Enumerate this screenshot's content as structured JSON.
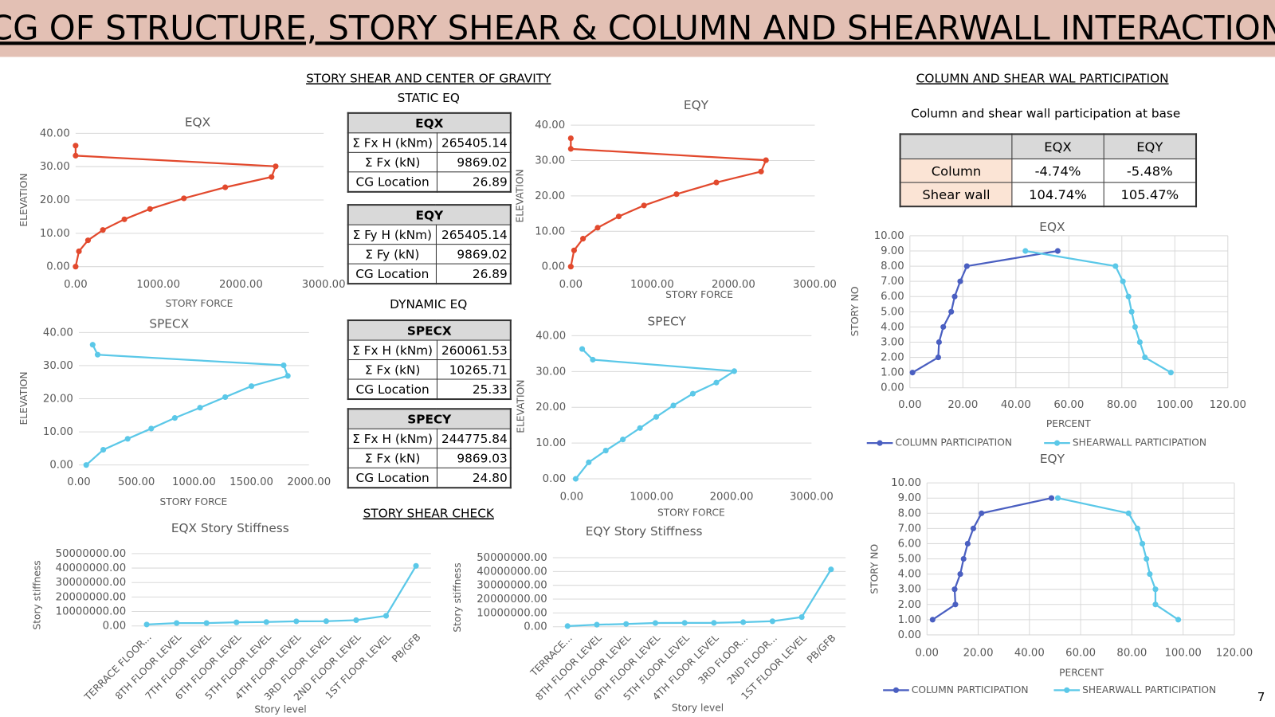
{
  "header": {
    "title": "CG OF STRUCTURE, STORY SHEAR & COLUMN AND SHEARWALL INTERACTION"
  },
  "headings": {
    "story_shear_cg": "STORY SHEAR AND CENTER OF GRAVITY",
    "static_eq": "STATIC EQ",
    "dynamic_eq": "DYNAMIC EQ",
    "story_shear_check": "STORY SHEAR CHECK",
    "participation": "COLUMN AND SHEAR WAL PARTICIPATION",
    "participation_sub": "Column and shear wall participation at base"
  },
  "page_number": 7,
  "tables": [
    {
      "title": "EQX",
      "rows": [
        [
          "Σ Fx H (kNm)",
          "265405.14"
        ],
        [
          "Σ Fx (kN)",
          "9869.02"
        ],
        [
          "CG Location",
          "26.89"
        ]
      ]
    },
    {
      "title": "EQY",
      "rows": [
        [
          "Σ Fy H (kNm)",
          "265405.14"
        ],
        [
          "Σ Fy (kN)",
          "9869.02"
        ],
        [
          "CG Location",
          "26.89"
        ]
      ]
    },
    {
      "title": "SPECX",
      "rows": [
        [
          "Σ Fx H (kNm)",
          "260061.53"
        ],
        [
          "Σ Fx (kN)",
          "10265.71"
        ],
        [
          "CG Location",
          "25.33"
        ]
      ]
    },
    {
      "title": "SPECY",
      "rows": [
        [
          "Σ Fx H (kNm)",
          "244775.84"
        ],
        [
          "Σ Fx (kN)",
          "9869.03"
        ],
        [
          "CG Location",
          "24.80"
        ]
      ]
    }
  ],
  "participation_table": {
    "columns": [
      "EQX",
      "EQY"
    ],
    "rows": [
      {
        "label": "Column",
        "values": [
          "-4.74%",
          "-5.48%"
        ]
      },
      {
        "label": "Shear wall",
        "values": [
          "104.74%",
          "105.47%"
        ]
      }
    ]
  },
  "chart_data": [
    {
      "type": "line",
      "title": "EQX",
      "x_label": "STORY FORCE",
      "y_label": "ELEVATION",
      "grid": "y",
      "series": [
        {
          "color": "#e2492d",
          "x": [
            0,
            0,
            2420,
            2370,
            1810,
            1310,
            900,
            590,
            330,
            150,
            40,
            0
          ],
          "values": [
            36.3,
            33.3,
            30.1,
            26.9,
            23.8,
            20.5,
            17.3,
            14.2,
            11.0,
            7.9,
            4.6,
            0
          ]
        }
      ],
      "xlim": [
        0,
        3000
      ],
      "xticks": [
        {
          "value": 0,
          "label": "0.00"
        },
        {
          "value": 1000,
          "label": "1000.00"
        },
        {
          "value": 2000,
          "label": "2000.00"
        },
        {
          "value": 3000,
          "label": "3000.00"
        }
      ],
      "ylim": [
        0,
        40
      ],
      "yticks": [
        {
          "value": 0,
          "label": "0.00"
        },
        {
          "value": 10,
          "label": "10.00"
        },
        {
          "value": 20,
          "label": "20.00"
        },
        {
          "value": 30,
          "label": "30.00"
        },
        {
          "value": 40,
          "label": "40.00"
        }
      ]
    },
    {
      "type": "line",
      "title": "EQY",
      "x_label": "STORY FORCE",
      "y_label": "ELEVATION",
      "grid": "y",
      "series": [
        {
          "color": "#e2492d",
          "x": [
            0,
            0,
            2400,
            2340,
            1790,
            1300,
            900,
            590,
            330,
            150,
            40,
            0
          ],
          "values": [
            36.3,
            33.3,
            30.1,
            26.9,
            23.8,
            20.5,
            17.3,
            14.2,
            11.0,
            7.9,
            4.6,
            0
          ]
        }
      ],
      "xlim": [
        0,
        3000
      ],
      "xticks": [
        {
          "value": 0,
          "label": "0.00"
        },
        {
          "value": 1000,
          "label": "1000.00"
        },
        {
          "value": 2000,
          "label": "2000.00"
        },
        {
          "value": 3000,
          "label": "3000.00"
        }
      ],
      "ylim": [
        0,
        40
      ],
      "yticks": [
        {
          "value": 0,
          "label": "0.00"
        },
        {
          "value": 10,
          "label": "10.00"
        },
        {
          "value": 20,
          "label": "20.00"
        },
        {
          "value": 30,
          "label": "30.00"
        },
        {
          "value": 40,
          "label": "40.00"
        }
      ]
    },
    {
      "type": "line",
      "title": "SPECX",
      "x_label": "STORY FORCE",
      "y_label": "ELEVATION",
      "grid": "y",
      "series": [
        {
          "color": "#5bc8e8",
          "x": [
            120,
            163,
            1780,
            1816,
            1500,
            1272,
            1053,
            834,
            629,
            424,
            212,
            64
          ],
          "values": [
            36.3,
            33.3,
            30.1,
            26.9,
            23.8,
            20.5,
            17.3,
            14.2,
            11.0,
            7.9,
            4.6,
            0
          ]
        }
      ],
      "xlim": [
        0,
        2000
      ],
      "xticks": [
        {
          "value": 0,
          "label": "0.00"
        },
        {
          "value": 500,
          "label": "500.00"
        },
        {
          "value": 1000,
          "label": "1000.00"
        },
        {
          "value": 1500,
          "label": "1500.00"
        },
        {
          "value": 2000,
          "label": "2000.00"
        }
      ],
      "ylim": [
        0,
        40
      ],
      "yticks": [
        {
          "value": 0,
          "label": "0.00"
        },
        {
          "value": 10,
          "label": "10.00"
        },
        {
          "value": 20,
          "label": "20.00"
        },
        {
          "value": 30,
          "label": "30.00"
        },
        {
          "value": 40,
          "label": "40.00"
        }
      ]
    },
    {
      "type": "line",
      "title": "SPECY",
      "x_label": "STORY FORCE",
      "y_label": "ELEVATION",
      "grid": "y",
      "series": [
        {
          "color": "#5bc8e8",
          "x": [
            132,
            265,
            2034,
            1810,
            1516,
            1272,
            1058,
            855,
            641,
            427,
            214,
            51
          ],
          "values": [
            36.3,
            33.3,
            30.1,
            26.9,
            23.8,
            20.5,
            17.3,
            14.2,
            11.0,
            7.9,
            4.6,
            0
          ]
        }
      ],
      "xlim": [
        0,
        3000
      ],
      "xticks": [
        {
          "value": 0,
          "label": "0.00"
        },
        {
          "value": 1000,
          "label": "1000.00"
        },
        {
          "value": 2000,
          "label": "2000.00"
        },
        {
          "value": 3000,
          "label": "3000.00"
        }
      ],
      "ylim": [
        0,
        40
      ],
      "yticks": [
        {
          "value": 0,
          "label": "0.00"
        },
        {
          "value": 10,
          "label": "10.00"
        },
        {
          "value": 20,
          "label": "20.00"
        },
        {
          "value": 30,
          "label": "30.00"
        },
        {
          "value": 40,
          "label": "40.00"
        }
      ]
    },
    {
      "type": "line",
      "title": "EQX Story Stiffness",
      "x_label": "Story level",
      "y_label": "Story stiffness",
      "grid": "y",
      "categories": [
        "TERRACE FLOOR...",
        "8TH FLOOR LEVEL",
        "7TH FLOOR LEVEL",
        "6TH FLOOR LEVEL",
        "5TH FLOOR LEVEL",
        "4TH FLOOR LEVEL",
        "3RD FLOOR LEVEL",
        "2ND FLOOR LEVEL",
        "1ST FLOOR LEVEL",
        "PB/GFB"
      ],
      "series": [
        {
          "color": "#5bc8e8",
          "values": [
            1000000,
            2000000,
            2000000,
            2500000,
            2700000,
            3200000,
            3300000,
            4000000,
            7000000,
            41500000
          ]
        }
      ],
      "ylim": [
        0,
        50000000
      ],
      "yticks": [
        {
          "value": 0,
          "label": "0.00"
        },
        {
          "value": 10000000,
          "label": "10000000.00"
        },
        {
          "value": 20000000,
          "label": "20000000.00"
        },
        {
          "value": 30000000,
          "label": "30000000.00"
        },
        {
          "value": 40000000,
          "label": "40000000.00"
        },
        {
          "value": 50000000,
          "label": "50000000.00"
        }
      ]
    },
    {
      "type": "line",
      "title": "EQY Story Stiffness",
      "x_label": "Story level",
      "y_label": "Story stiffness",
      "grid": "y",
      "categories": [
        "TERRACE...",
        "8TH FLOOR LEVEL",
        "7TH FLOOR LEVEL",
        "6TH FLOOR LEVEL",
        "5TH FLOOR LEVEL",
        "4TH FLOOR LEVEL",
        "3RD FLOOR...",
        "2ND FLOOR...",
        "1ST FLOOR LEVEL",
        "PB/GFB"
      ],
      "series": [
        {
          "color": "#5bc8e8",
          "values": [
            500000,
            1500000,
            2000000,
            2700000,
            2800000,
            2800000,
            3300000,
            4000000,
            7000000,
            41500000
          ]
        }
      ],
      "ylim": [
        0,
        50000000
      ],
      "yticks": [
        {
          "value": 0,
          "label": "0.00"
        },
        {
          "value": 10000000,
          "label": "10000000.00"
        },
        {
          "value": 20000000,
          "label": "20000000.00"
        },
        {
          "value": 30000000,
          "label": "30000000.00"
        },
        {
          "value": 40000000,
          "label": "40000000.00"
        },
        {
          "value": 50000000,
          "label": "50000000.00"
        }
      ]
    },
    {
      "type": "line",
      "title": "EQX",
      "x_label": "PERCENT",
      "y_label": "STORY NO",
      "grid": "both",
      "series": [
        {
          "name": "COLUMN PARTICIPATION",
          "color": "#4a5fc1",
          "x": [
            1,
            10.7,
            11,
            12.6,
            15.6,
            16.9,
            19,
            21.5,
            55.8
          ],
          "values": [
            1,
            2,
            3,
            4,
            5,
            6,
            7,
            8,
            9
          ]
        },
        {
          "name": "SHEARWALL PARTICIPATION",
          "color": "#5bc8e8",
          "x": [
            98.5,
            88.7,
            86.8,
            85,
            83.7,
            82.5,
            80.4,
            77.6,
            43.6
          ],
          "values": [
            1,
            2,
            3,
            4,
            5,
            6,
            7,
            8,
            9
          ]
        }
      ],
      "xlim": [
        0,
        120
      ],
      "xticks": [
        {
          "value": 0,
          "label": "0.00"
        },
        {
          "value": 20,
          "label": "20.00"
        },
        {
          "value": 40,
          "label": "40.00"
        },
        {
          "value": 60,
          "label": "60.00"
        },
        {
          "value": 80,
          "label": "80.00"
        },
        {
          "value": 100,
          "label": "100.00"
        },
        {
          "value": 120,
          "label": "120.00"
        }
      ],
      "ylim": [
        0,
        10
      ],
      "yticks": [
        {
          "value": 0,
          "label": "0.00"
        },
        {
          "value": 1,
          "label": "1.00"
        },
        {
          "value": 2,
          "label": "2.00"
        },
        {
          "value": 3,
          "label": "3.00"
        },
        {
          "value": 4,
          "label": "4.00"
        },
        {
          "value": 5,
          "label": "5.00"
        },
        {
          "value": 6,
          "label": "6.00"
        },
        {
          "value": 7,
          "label": "7.00"
        },
        {
          "value": 8,
          "label": "8.00"
        },
        {
          "value": 9,
          "label": "9.00"
        },
        {
          "value": 10,
          "label": "10.00"
        }
      ]
    },
    {
      "type": "line",
      "title": "EQY",
      "x_label": "PERCENT",
      "y_label": "STORY NO",
      "grid": "both",
      "series": [
        {
          "name": "COLUMN PARTICIPATION",
          "color": "#4a5fc1",
          "x": [
            2.2,
            11.1,
            10.8,
            13,
            14.3,
            15.9,
            18.1,
            21.3,
            48.6
          ],
          "values": [
            1,
            2,
            3,
            4,
            5,
            6,
            7,
            8,
            9
          ]
        },
        {
          "name": "SHEARWALL PARTICIPATION",
          "color": "#5bc8e8",
          "x": [
            98.1,
            89.2,
            89.2,
            87,
            85.7,
            84.1,
            82.2,
            78.7,
            51.1
          ],
          "values": [
            1,
            2,
            3,
            4,
            5,
            6,
            7,
            8,
            9
          ]
        }
      ],
      "xlim": [
        0,
        120
      ],
      "xticks": [
        {
          "value": 0,
          "label": "0.00"
        },
        {
          "value": 20,
          "label": "20.00"
        },
        {
          "value": 40,
          "label": "40.00"
        },
        {
          "value": 60,
          "label": "60.00"
        },
        {
          "value": 80,
          "label": "80.00"
        },
        {
          "value": 100,
          "label": "100.00"
        },
        {
          "value": 120,
          "label": "120.00"
        }
      ],
      "ylim": [
        0,
        10
      ],
      "yticks": [
        {
          "value": 0,
          "label": "0.00"
        },
        {
          "value": 1,
          "label": "1.00"
        },
        {
          "value": 2,
          "label": "2.00"
        },
        {
          "value": 3,
          "label": "3.00"
        },
        {
          "value": 4,
          "label": "4.00"
        },
        {
          "value": 5,
          "label": "5.00"
        },
        {
          "value": 6,
          "label": "6.00"
        },
        {
          "value": 7,
          "label": "7.00"
        },
        {
          "value": 8,
          "label": "8.00"
        },
        {
          "value": 9,
          "label": "9.00"
        },
        {
          "value": 10,
          "label": "10.00"
        }
      ]
    }
  ]
}
